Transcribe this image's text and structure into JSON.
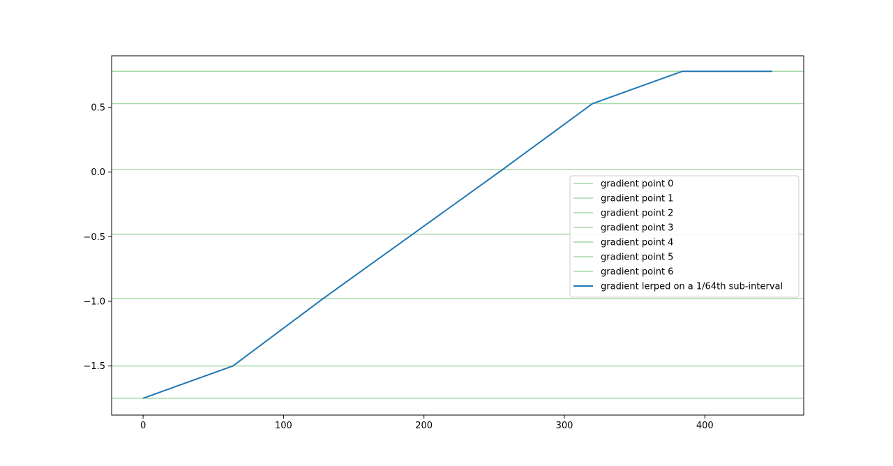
{
  "chart_data": {
    "type": "line",
    "title": "",
    "xlabel": "",
    "ylabel": "",
    "xlim": [
      -22.4,
      470.4
    ],
    "ylim": [
      -1.88,
      0.9
    ],
    "xticks": [
      0,
      100,
      200,
      300,
      400
    ],
    "xtick_labels": [
      "0",
      "100",
      "200",
      "300",
      "400"
    ],
    "yticks": [
      0.5,
      0.0,
      -0.5,
      -1.0,
      -1.5
    ],
    "ytick_labels": [
      "0.5",
      "0.0",
      "−0.5",
      "−1.0",
      "−1.5"
    ],
    "grid": false,
    "legend_position": "center-right",
    "hlines": [
      {
        "name": "gradient point 0",
        "y": -1.75,
        "color": "#a6d9a6"
      },
      {
        "name": "gradient point 1",
        "y": -1.5,
        "color": "#a6d9a6"
      },
      {
        "name": "gradient point 2",
        "y": -0.98,
        "color": "#a6d9a6"
      },
      {
        "name": "gradient point 3",
        "y": -0.48,
        "color": "#a6d9a6"
      },
      {
        "name": "gradient point 4",
        "y": 0.02,
        "color": "#a6d9a6"
      },
      {
        "name": "gradient point 5",
        "y": 0.53,
        "color": "#a6d9a6"
      },
      {
        "name": "gradient point 6",
        "y": 0.78,
        "color": "#a6d9a6"
      }
    ],
    "series": [
      {
        "name": "gradient lerped on a 1/64th sub-interval",
        "color": "#1f77b4",
        "x": [
          0,
          64,
          128,
          192,
          256,
          320,
          384,
          448
        ],
        "y": [
          -1.75,
          -1.5,
          -0.98,
          -0.48,
          0.02,
          0.53,
          0.78,
          0.78
        ]
      }
    ]
  }
}
